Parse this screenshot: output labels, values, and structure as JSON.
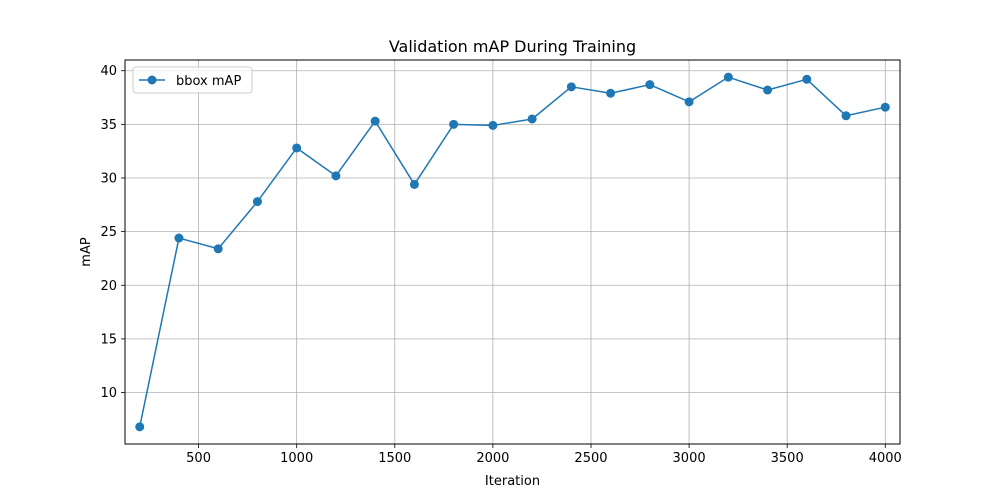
{
  "chart_data": {
    "type": "line",
    "title": "Validation mAP During Training",
    "xlabel": "Iteration",
    "ylabel": "mAP",
    "xlim": [
      125,
      4075
    ],
    "ylim": [
      5.2,
      41.0
    ],
    "x_ticks": [
      500,
      1000,
      1500,
      2000,
      2500,
      3000,
      3500,
      4000
    ],
    "x_tick_labels": [
      "500",
      "1000",
      "1500",
      "2000",
      "2500",
      "3000",
      "3500",
      "4000"
    ],
    "y_ticks": [
      10,
      15,
      20,
      25,
      30,
      35,
      40
    ],
    "y_tick_labels": [
      "10",
      "15",
      "20",
      "25",
      "30",
      "35",
      "40"
    ],
    "grid": true,
    "legend_position": "top-left",
    "series": [
      {
        "name": "bbox mAP",
        "color": "#1f77b4",
        "marker": "circle",
        "x": [
          200,
          400,
          600,
          800,
          1000,
          1200,
          1400,
          1600,
          1800,
          2000,
          2200,
          2400,
          2600,
          2800,
          3000,
          3200,
          3400,
          3600,
          3800,
          4000
        ],
        "y": [
          6.8,
          24.4,
          23.4,
          27.8,
          32.8,
          30.2,
          35.3,
          29.4,
          35.0,
          34.9,
          35.5,
          38.5,
          37.9,
          38.7,
          37.1,
          39.4,
          38.2,
          39.2,
          35.8,
          36.6
        ]
      }
    ]
  }
}
